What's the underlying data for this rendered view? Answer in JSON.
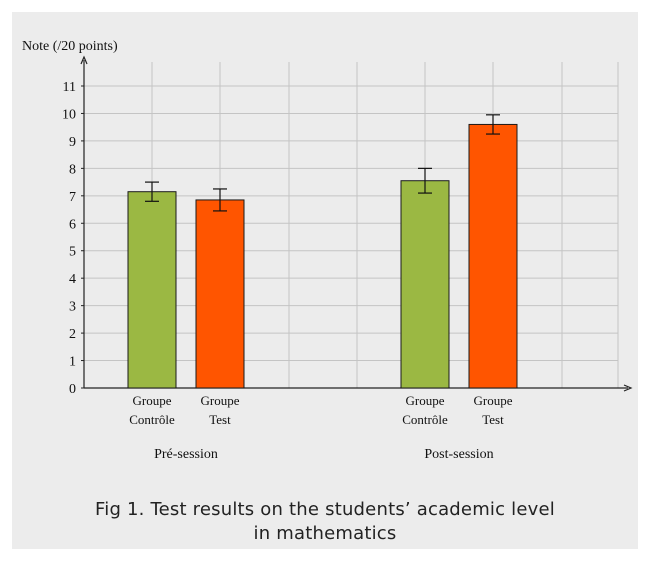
{
  "chart_data": {
    "type": "bar",
    "ylabel": "Note (/20 points)",
    "ylim": [
      0,
      11
    ],
    "yticks": [
      0,
      1,
      2,
      3,
      4,
      5,
      6,
      7,
      8,
      9,
      10,
      11
    ],
    "grid": true,
    "groups": [
      {
        "name": "Pré-session",
        "bars": [
          {
            "label_line1": "Groupe",
            "label_line2": "Contrôle",
            "value": 7.15,
            "error": 0.35,
            "color": "#9bb843"
          },
          {
            "label_line1": "Groupe",
            "label_line2": "Test",
            "value": 6.85,
            "error": 0.4,
            "color": "#ff5500"
          }
        ]
      },
      {
        "name": "Post-session",
        "bars": [
          {
            "label_line1": "Groupe",
            "label_line2": "Contrôle",
            "value": 7.55,
            "error": 0.45,
            "color": "#9bb843"
          },
          {
            "label_line1": "Groupe",
            "label_line2": "Test",
            "value": 9.6,
            "error": 0.35,
            "color": "#ff5500"
          }
        ]
      }
    ]
  },
  "caption": {
    "line1": "Fig 1. Test results on the students’ academic level",
    "line2": "in mathematics"
  }
}
